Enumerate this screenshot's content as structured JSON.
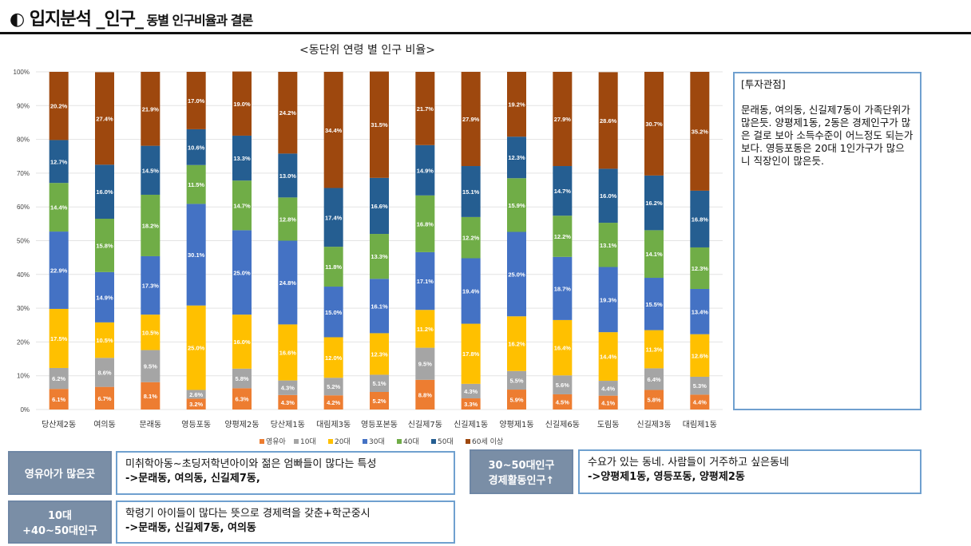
{
  "header": {
    "title_main": "◐ 입지분석 _인구_",
    "title_sub": " 동별 인구비율과 결론"
  },
  "chart_data": {
    "type": "bar",
    "stacked": true,
    "title": "<동단위 연령 별 인구 비율>",
    "categories": [
      "당산제2동",
      "여의동",
      "문래동",
      "영등포동",
      "양평제2동",
      "당산제1동",
      "대림제3동",
      "영등포본동",
      "신길제7동",
      "신길제1동",
      "양평제1동",
      "신길제6동",
      "도림동",
      "신길제3동",
      "대림제1동"
    ],
    "y_ticks": [
      "0%",
      "10%",
      "20%",
      "30%",
      "40%",
      "50%",
      "60%",
      "70%",
      "80%",
      "90%",
      "100%"
    ],
    "ylim": [
      0,
      100
    ],
    "legend_position": "bottom",
    "series": [
      {
        "name": "영유아",
        "color": "#ed7d31",
        "values": [
          6.1,
          6.7,
          8.1,
          3.2,
          6.3,
          4.3,
          4.2,
          5.2,
          8.8,
          3.3,
          5.9,
          4.5,
          4.1,
          5.8,
          4.4
        ]
      },
      {
        "name": "10대",
        "color": "#a5a5a5",
        "values": [
          6.2,
          8.6,
          9.5,
          2.6,
          5.8,
          4.3,
          5.2,
          5.1,
          9.5,
          4.3,
          5.5,
          5.6,
          4.4,
          6.4,
          5.3
        ]
      },
      {
        "name": "20대",
        "color": "#ffc000",
        "values": [
          17.5,
          10.5,
          10.5,
          25.0,
          16.0,
          16.6,
          12.0,
          12.3,
          11.2,
          17.8,
          16.2,
          16.4,
          14.4,
          11.3,
          12.6
        ]
      },
      {
        "name": "30대",
        "color": "#4472c4",
        "values": [
          22.9,
          14.9,
          17.3,
          30.1,
          25.0,
          24.8,
          15.0,
          16.1,
          17.1,
          19.4,
          25.0,
          18.7,
          19.3,
          15.5,
          13.4
        ]
      },
      {
        "name": "40대",
        "color": "#70ad47",
        "values": [
          14.4,
          15.8,
          18.2,
          11.5,
          14.7,
          12.8,
          11.8,
          13.3,
          16.8,
          12.2,
          15.9,
          12.2,
          13.1,
          14.1,
          12.3
        ]
      },
      {
        "name": "50대",
        "color": "#255e91",
        "values": [
          12.7,
          16.0,
          14.5,
          10.6,
          13.3,
          13.0,
          17.4,
          16.6,
          14.9,
          15.1,
          12.3,
          14.7,
          16.0,
          16.2,
          16.8
        ]
      },
      {
        "name": "60세 이상",
        "color": "#9e480e",
        "values": [
          20.2,
          27.4,
          21.9,
          17.0,
          19.0,
          24.2,
          34.4,
          31.5,
          21.7,
          27.9,
          19.2,
          27.9,
          28.6,
          30.7,
          35.2
        ]
      }
    ]
  },
  "insight": {
    "heading": "[투자관점]",
    "body": "문래동, 여의동, 신길제7동이 가족단위가 많은듯. 양평제1동, 2동은 경제인구가 많은 걸로 보아 소득수준이 어느정도 되는가보다. 영등포동은 20대 1인가구가 많으니 직장인이 많은듯."
  },
  "notes": {
    "infant": {
      "label": "영유아가 많은곳",
      "line1": "미취학아동~초딩저학년아이와 젊은 엄빠들이 많다는 특성",
      "line2": "->문래동, 여의동, 신길제7동,"
    },
    "working": {
      "label_line1": "30~50대인구",
      "label_line2": "경제활동인구↑",
      "line1": "수요가 있는 동네. 사람들이 거주하고 싶은동네",
      "line2": "->양평제1동, 영등포동, 양평제2동"
    },
    "teens": {
      "label_line1": "10대",
      "label_line2": "+40~50대인구",
      "line1": "학령기 아이들이 많다는 뜻으로 경제력을 갖춘+학군중시",
      "line2": "->문래동, 신길제7동, 여의동"
    }
  }
}
